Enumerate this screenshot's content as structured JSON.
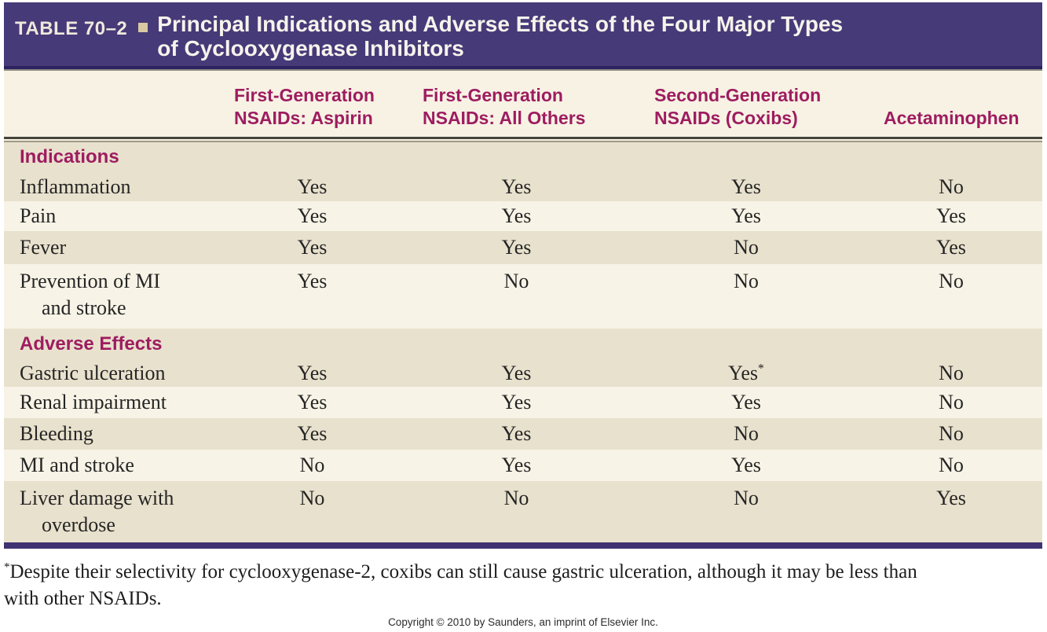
{
  "header": {
    "table_label": "TABLE 70–2",
    "title": "Principal Indications and Adverse Effects of the Four Major Types\nof Cyclooxygenase Inhibitors"
  },
  "columns": [
    "First-Generation\nNSAIDs: Aspirin",
    "First-Generation\nNSAIDs: All Others",
    "Second-Generation\nNSAIDs (Coxibs)",
    "Acetaminophen"
  ],
  "sections": [
    {
      "header": "Indications",
      "rows": [
        {
          "label": "Inflammation",
          "values": [
            "Yes",
            "Yes",
            "Yes",
            "No"
          ]
        },
        {
          "label": "Pain",
          "values": [
            "Yes",
            "Yes",
            "Yes",
            "Yes"
          ]
        },
        {
          "label": "Fever",
          "values": [
            "Yes",
            "Yes",
            "No",
            "Yes"
          ]
        },
        {
          "label": "Prevention of MI\nand stroke",
          "values": [
            "Yes",
            "No",
            "No",
            "No"
          ]
        }
      ]
    },
    {
      "header": "Adverse Effects",
      "rows": [
        {
          "label": "Gastric ulceration",
          "values": [
            "Yes",
            "Yes",
            "Yes*",
            "No"
          ]
        },
        {
          "label": "Renal impairment",
          "values": [
            "Yes",
            "Yes",
            "Yes",
            "No"
          ]
        },
        {
          "label": "Bleeding",
          "values": [
            "Yes",
            "Yes",
            "No",
            "No"
          ]
        },
        {
          "label": "MI and stroke",
          "values": [
            "No",
            "Yes",
            "Yes",
            "No"
          ]
        },
        {
          "label": "Liver damage with\noverdose",
          "values": [
            "No",
            "No",
            "No",
            "Yes"
          ]
        }
      ]
    }
  ],
  "footnote": {
    "marker": "*",
    "text": "Despite their selectivity for cyclooxygenase-2, coxibs can still cause gastric ulceration, although it may be less than\nwith other NSAIDs."
  },
  "copyright": "Copyright © 2010 by Saunders, an imprint of Elsevier Inc.",
  "colors": {
    "title_bar_purple": "#473a78",
    "heading_maroon": "#9e1c60",
    "stripe_dark": "#e8e1cd",
    "stripe_light": "#f7f3e6",
    "bullet_tan": "#d9c9a2",
    "bottom_bar_purple": "#3e3272"
  }
}
